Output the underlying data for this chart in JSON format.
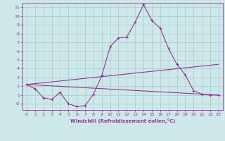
{
  "title": "",
  "xlabel": "Windchill (Refroidissement éolien,°C)",
  "background_color": "#cce8e8",
  "grid_color": "#aacccc",
  "line_color": "#993399",
  "xlim": [
    -0.5,
    23.5
  ],
  "ylim": [
    -0.7,
    11.5
  ],
  "xticks": [
    0,
    1,
    2,
    3,
    4,
    5,
    6,
    7,
    8,
    9,
    10,
    11,
    12,
    13,
    14,
    15,
    16,
    17,
    18,
    19,
    20,
    21,
    22,
    23
  ],
  "yticks": [
    0,
    1,
    2,
    3,
    4,
    5,
    6,
    7,
    8,
    9,
    10,
    11
  ],
  "ytick_labels": [
    "-0",
    "1",
    "2",
    "3",
    "4",
    "5",
    "6",
    "7",
    "8",
    "9",
    "10",
    "11"
  ],
  "series1_x": [
    0,
    1,
    2,
    3,
    4,
    5,
    6,
    7,
    8,
    9,
    10,
    11,
    12,
    13,
    14,
    15,
    16,
    17,
    18,
    19,
    20,
    21,
    22,
    23
  ],
  "series1_y": [
    2.2,
    1.7,
    0.7,
    0.5,
    1.3,
    0.0,
    -0.3,
    -0.2,
    1.1,
    3.2,
    6.5,
    7.5,
    7.6,
    9.3,
    11.3,
    9.5,
    8.6,
    6.3,
    4.5,
    3.3,
    1.5,
    1.1,
    1.0,
    1.0
  ],
  "series2_x": [
    0,
    23
  ],
  "series2_y": [
    2.2,
    4.5
  ],
  "series3_x": [
    0,
    23
  ],
  "series3_y": [
    2.2,
    1.0
  ]
}
